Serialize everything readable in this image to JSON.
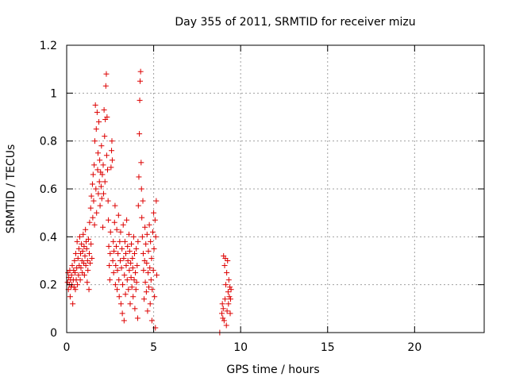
{
  "chart_data": {
    "type": "scatter",
    "title": "Day 355 of 2011, SRMTID for receiver mizu",
    "xlabel": "GPS time / hours",
    "ylabel": "SRMTID / TECUs",
    "xlim": [
      0,
      24
    ],
    "ylim": [
      0,
      1.2
    ],
    "xticks": [
      0,
      5,
      10,
      15,
      20
    ],
    "xtick_labels": [
      "0",
      "5",
      "10",
      "15",
      "20"
    ],
    "yticks": [
      0,
      0.2,
      0.4,
      0.6,
      0.8,
      1.0,
      1.2
    ],
    "ytick_labels": [
      "0",
      "0.2",
      "0.4",
      "0.6",
      "0.8",
      "1",
      "1.2"
    ],
    "grid": true,
    "marker": "plus",
    "marker_color": "#dd0000",
    "series": [
      {
        "points": [
          [
            0.05,
            0.21
          ],
          [
            0.08,
            0.25
          ],
          [
            0.1,
            0.18
          ],
          [
            0.12,
            0.23
          ],
          [
            0.15,
            0.2
          ],
          [
            0.18,
            0.26
          ],
          [
            0.2,
            0.15
          ],
          [
            0.22,
            0.22
          ],
          [
            0.25,
            0.19
          ],
          [
            0.28,
            0.24
          ],
          [
            0.3,
            0.2
          ],
          [
            0.32,
            0.28
          ],
          [
            0.35,
            0.12
          ],
          [
            0.38,
            0.22
          ],
          [
            0.4,
            0.26
          ],
          [
            0.42,
            0.19
          ],
          [
            0.45,
            0.3
          ],
          [
            0.48,
            0.25
          ],
          [
            0.5,
            0.18
          ],
          [
            0.52,
            0.33
          ],
          [
            0.55,
            0.22
          ],
          [
            0.58,
            0.27
          ],
          [
            0.6,
            0.38
          ],
          [
            0.62,
            0.2
          ],
          [
            0.65,
            0.31
          ],
          [
            0.68,
            0.24
          ],
          [
            0.7,
            0.35
          ],
          [
            0.72,
            0.28
          ],
          [
            0.75,
            0.4
          ],
          [
            0.78,
            0.22
          ],
          [
            0.8,
            0.33
          ],
          [
            0.82,
            0.27
          ],
          [
            0.85,
            0.37
          ],
          [
            0.88,
            0.3
          ],
          [
            0.9,
            0.25
          ],
          [
            0.92,
            0.34
          ],
          [
            0.95,
            0.41
          ],
          [
            0.98,
            0.29
          ],
          [
            1.0,
            0.36
          ],
          [
            1.02,
            0.24
          ],
          [
            1.05,
            0.32
          ],
          [
            1.08,
            0.43
          ],
          [
            1.1,
            0.28
          ],
          [
            1.12,
            0.38
          ],
          [
            1.15,
            0.35
          ],
          [
            1.18,
            0.21
          ],
          [
            1.2,
            0.3
          ],
          [
            1.22,
            0.26
          ],
          [
            1.25,
            0.39
          ],
          [
            1.28,
            0.18
          ],
          [
            1.3,
            0.33
          ],
          [
            1.32,
            0.46
          ],
          [
            1.35,
            0.29
          ],
          [
            1.38,
            0.52
          ],
          [
            1.4,
            0.37
          ],
          [
            1.42,
            0.57
          ],
          [
            1.45,
            0.31
          ],
          [
            1.48,
            0.62
          ],
          [
            1.5,
            0.48
          ],
          [
            1.52,
            0.66
          ],
          [
            1.55,
            0.55
          ],
          [
            1.58,
            0.7
          ],
          [
            1.6,
            0.45
          ],
          [
            1.62,
            0.8
          ],
          [
            1.65,
            0.95
          ],
          [
            1.68,
            0.6
          ],
          [
            1.7,
            0.85
          ],
          [
            1.72,
            0.5
          ],
          [
            1.75,
            0.92
          ],
          [
            1.78,
            0.68
          ],
          [
            1.8,
            0.75
          ],
          [
            1.82,
            0.58
          ],
          [
            1.85,
            0.88
          ],
          [
            1.88,
            0.63
          ],
          [
            1.9,
            0.72
          ],
          [
            1.92,
            0.53
          ],
          [
            1.95,
            0.67
          ],
          [
            1.98,
            0.61
          ],
          [
            2.0,
            0.78
          ],
          [
            2.02,
            0.56
          ],
          [
            2.05,
            0.66
          ],
          [
            2.08,
            0.44
          ],
          [
            2.1,
            0.7
          ],
          [
            2.12,
            0.58
          ],
          [
            2.15,
            0.93
          ],
          [
            2.18,
            0.82
          ],
          [
            2.2,
            0.63
          ],
          [
            2.22,
            0.89
          ],
          [
            2.25,
            1.03
          ],
          [
            2.28,
            1.08
          ],
          [
            2.3,
            0.74
          ],
          [
            2.32,
            0.9
          ],
          [
            2.35,
            0.68
          ],
          [
            2.38,
            0.55
          ],
          [
            2.4,
            0.47
          ],
          [
            2.42,
            0.36
          ],
          [
            2.45,
            0.28
          ],
          [
            2.48,
            0.22
          ],
          [
            2.5,
            0.33
          ],
          [
            2.52,
            0.42
          ],
          [
            2.55,
            0.69
          ],
          [
            2.58,
            0.76
          ],
          [
            2.6,
            0.8
          ],
          [
            2.62,
            0.72
          ],
          [
            2.65,
            0.3
          ],
          [
            2.68,
            0.38
          ],
          [
            2.7,
            0.25
          ],
          [
            2.72,
            0.34
          ],
          [
            2.75,
            0.46
          ],
          [
            2.78,
            0.53
          ],
          [
            2.8,
            0.2
          ],
          [
            2.82,
            0.28
          ],
          [
            2.85,
            0.36
          ],
          [
            2.88,
            0.43
          ],
          [
            2.9,
            0.18
          ],
          [
            2.92,
            0.26
          ],
          [
            2.95,
            0.33
          ],
          [
            2.98,
            0.49
          ],
          [
            3.0,
            0.22
          ],
          [
            3.02,
            0.15
          ],
          [
            3.05,
            0.38
          ],
          [
            3.08,
            0.3
          ],
          [
            3.1,
            0.42
          ],
          [
            3.12,
            0.12
          ],
          [
            3.15,
            0.27
          ],
          [
            3.18,
            0.35
          ],
          [
            3.2,
            0.08
          ],
          [
            3.22,
            0.2
          ],
          [
            3.25,
            0.45
          ],
          [
            3.28,
            0.31
          ],
          [
            3.3,
            0.05
          ],
          [
            3.32,
            0.24
          ],
          [
            3.35,
            0.38
          ],
          [
            3.38,
            0.16
          ],
          [
            3.4,
            0.33
          ],
          [
            3.42,
            0.28
          ],
          [
            3.45,
            0.47
          ],
          [
            3.48,
            0.22
          ],
          [
            3.5,
            0.36
          ],
          [
            3.52,
            0.3
          ],
          [
            3.55,
            0.18
          ],
          [
            3.58,
            0.41
          ],
          [
            3.6,
            0.26
          ],
          [
            3.62,
            0.34
          ],
          [
            3.65,
            0.12
          ],
          [
            3.68,
            0.29
          ],
          [
            3.7,
            0.23
          ],
          [
            3.72,
            0.37
          ],
          [
            3.75,
            0.19
          ],
          [
            3.78,
            0.31
          ],
          [
            3.8,
            0.27
          ],
          [
            3.82,
            0.15
          ],
          [
            3.85,
            0.4
          ],
          [
            3.88,
            0.22
          ],
          [
            3.9,
            0.33
          ],
          [
            3.92,
            0.1
          ],
          [
            3.95,
            0.25
          ],
          [
            3.98,
            0.18
          ],
          [
            4.0,
            0.35
          ],
          [
            4.02,
            0.21
          ],
          [
            4.05,
            0.28
          ],
          [
            4.08,
            0.06
          ],
          [
            4.1,
            0.38
          ],
          [
            4.12,
            0.53
          ],
          [
            4.15,
            0.65
          ],
          [
            4.18,
            0.83
          ],
          [
            4.2,
            0.97
          ],
          [
            4.22,
            1.05
          ],
          [
            4.25,
            1.09
          ],
          [
            4.28,
            0.71
          ],
          [
            4.3,
            0.6
          ],
          [
            4.32,
            0.48
          ],
          [
            4.35,
            0.4
          ],
          [
            4.38,
            0.55
          ],
          [
            4.4,
            0.33
          ],
          [
            4.42,
            0.26
          ],
          [
            4.45,
            0.14
          ],
          [
            4.48,
            0.3
          ],
          [
            4.5,
            0.44
          ],
          [
            4.52,
            0.21
          ],
          [
            4.55,
            0.37
          ],
          [
            4.58,
            0.17
          ],
          [
            4.6,
            0.29
          ],
          [
            4.62,
            0.41
          ],
          [
            4.65,
            0.09
          ],
          [
            4.68,
            0.25
          ],
          [
            4.7,
            0.34
          ],
          [
            4.72,
            0.19
          ],
          [
            4.75,
            0.45
          ],
          [
            4.78,
            0.27
          ],
          [
            4.8,
            0.12
          ],
          [
            4.82,
            0.38
          ],
          [
            4.85,
            0.22
          ],
          [
            4.88,
            0.31
          ],
          [
            4.9,
            0.05
          ],
          [
            4.92,
            0.18
          ],
          [
            4.95,
            0.42
          ],
          [
            4.98,
            0.26
          ],
          [
            5.0,
            0.5
          ],
          [
            5.02,
            0.35
          ],
          [
            5.05,
            0.15
          ],
          [
            5.08,
            0.47
          ],
          [
            5.1,
            0.02
          ],
          [
            5.12,
            0.4
          ],
          [
            5.15,
            0.55
          ],
          [
            5.18,
            0.24
          ],
          [
            8.8,
            0.0
          ],
          [
            8.92,
            0.08
          ],
          [
            8.95,
            0.12
          ],
          [
            8.98,
            0.06
          ],
          [
            9.0,
            0.1
          ],
          [
            9.02,
            0.32
          ],
          [
            9.05,
            0.05
          ],
          [
            9.08,
            0.28
          ],
          [
            9.1,
            0.14
          ],
          [
            9.12,
            0.31
          ],
          [
            9.15,
            0.2
          ],
          [
            9.18,
            0.03
          ],
          [
            9.2,
            0.25
          ],
          [
            9.22,
            0.09
          ],
          [
            9.25,
            0.3
          ],
          [
            9.28,
            0.17
          ],
          [
            9.3,
            0.12
          ],
          [
            9.32,
            0.22
          ],
          [
            9.35,
            0.15
          ],
          [
            9.38,
            0.19
          ],
          [
            9.4,
            0.08
          ],
          [
            9.42,
            0.14
          ],
          [
            9.45,
            0.18
          ]
        ]
      }
    ]
  }
}
